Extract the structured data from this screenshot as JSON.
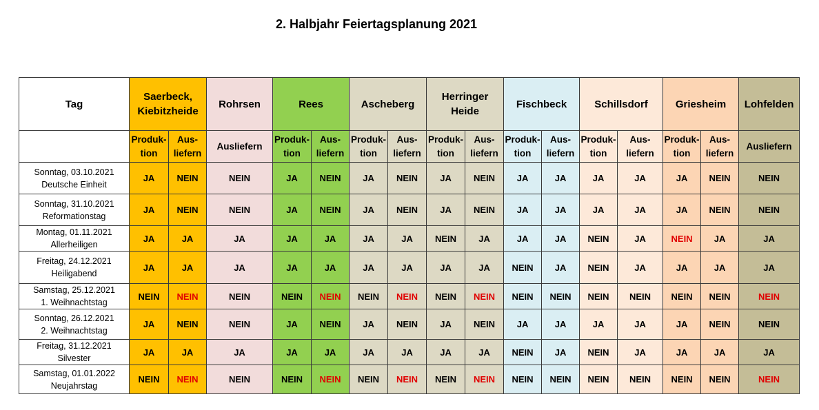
{
  "title": "2. Halbjahr Feiertagsplanung 2021",
  "colors": {
    "saerbeck": "#FFC000",
    "rohrsen": "#F2DCDB",
    "rees": "#92D050",
    "ascheberg": "#DDD9C4",
    "herringer": "#DDD9C4",
    "fischbeck": "#DAEEF3",
    "schillsdorf": "#FDE9D9",
    "griesheim": "#FCD5B4",
    "lohfelden": "#C4BD97",
    "highlight_red": "#E00000"
  },
  "header": {
    "tag_label": "Tag",
    "locations": [
      {
        "name_line1": "Saerbeck,",
        "name_line2": "Kiebitzheide"
      },
      {
        "name_line1": "Rohrsen"
      },
      {
        "name_line1": "Rees"
      },
      {
        "name_line1": "Ascheberg"
      },
      {
        "name_line1": "Herringer",
        "name_line2": "Heide"
      },
      {
        "name_line1": "Fischbeck"
      },
      {
        "name_line1": "Schillsdorf"
      },
      {
        "name_line1": "Griesheim"
      },
      {
        "name_line1": "Lohfelden"
      }
    ],
    "sub": {
      "produktion_a": "Produk-",
      "produktion_b": "tion",
      "ausliefern_a": "Aus-",
      "ausliefern_b": "liefern",
      "ausliefern": "Ausliefern"
    }
  },
  "rows": [
    {
      "date": "Sonntag,  03.10.2021",
      "holiday": "Deutsche Einheit",
      "values": [
        "JA",
        "NEIN",
        "NEIN",
        "JA",
        "NEIN",
        "JA",
        "NEIN",
        "JA",
        "NEIN",
        "JA",
        "JA",
        "JA",
        "JA",
        "JA",
        "NEIN",
        "NEIN"
      ]
    },
    {
      "date": "Sonntag, 31.10.2021",
      "holiday": "Reformationstag",
      "values": [
        "JA",
        "NEIN",
        "NEIN",
        "JA",
        "NEIN",
        "JA",
        "NEIN",
        "JA",
        "NEIN",
        "JA",
        "JA",
        "JA",
        "JA",
        "JA",
        "NEIN",
        "NEIN"
      ]
    },
    {
      "date": "Montag, 01.11.2021",
      "holiday": "Allerheiligen",
      "values": [
        "JA",
        "JA",
        "JA",
        "JA",
        "JA",
        "JA",
        "JA",
        "NEIN",
        "JA",
        "JA",
        "JA",
        "NEIN",
        "JA",
        "NEIN",
        "JA",
        "JA"
      ]
    },
    {
      "date": "Freitag, 24.12.2021",
      "holiday": "Heiligabend",
      "values": [
        "JA",
        "JA",
        "JA",
        "JA",
        "JA",
        "JA",
        "JA",
        "JA",
        "JA",
        "NEIN",
        "JA",
        "NEIN",
        "JA",
        "JA",
        "JA",
        "JA"
      ]
    },
    {
      "date": "Samstag, 25.12.2021",
      "holiday": "1. Weihnachtstag",
      "values": [
        "NEIN",
        "NEIN",
        "NEIN",
        "NEIN",
        "NEIN",
        "NEIN",
        "NEIN",
        "NEIN",
        "NEIN",
        "NEIN",
        "NEIN",
        "NEIN",
        "NEIN",
        "NEIN",
        "NEIN",
        "NEIN"
      ]
    },
    {
      "date": "Sonntag, 26.12.2021",
      "holiday": "2. Weihnachtstag",
      "values": [
        "JA",
        "NEIN",
        "NEIN",
        "JA",
        "NEIN",
        "JA",
        "NEIN",
        "JA",
        "NEIN",
        "JA",
        "JA",
        "JA",
        "JA",
        "JA",
        "NEIN",
        "NEIN"
      ]
    },
    {
      "date": "Freitag, 31.12.2021",
      "holiday": "Silvester",
      "values": [
        "JA",
        "JA",
        "JA",
        "JA",
        "JA",
        "JA",
        "JA",
        "JA",
        "JA",
        "NEIN",
        "JA",
        "NEIN",
        "JA",
        "JA",
        "JA",
        "JA"
      ]
    },
    {
      "date": "Samstag, 01.01.2022",
      "holiday": "Neujahrstag",
      "values": [
        "NEIN",
        "NEIN",
        "NEIN",
        "NEIN",
        "NEIN",
        "NEIN",
        "NEIN",
        "NEIN",
        "NEIN",
        "NEIN",
        "NEIN",
        "NEIN",
        "NEIN",
        "NEIN",
        "NEIN",
        "NEIN"
      ]
    }
  ],
  "red_cells": [
    {
      "row": 2,
      "col": 13
    },
    {
      "row": 4,
      "col": 1
    },
    {
      "row": 4,
      "col": 4
    },
    {
      "row": 4,
      "col": 6
    },
    {
      "row": 4,
      "col": 8
    },
    {
      "row": 4,
      "col": 15
    },
    {
      "row": 7,
      "col": 1
    },
    {
      "row": 7,
      "col": 4
    },
    {
      "row": 7,
      "col": 6
    },
    {
      "row": 7,
      "col": 8
    },
    {
      "row": 7,
      "col": 15
    }
  ]
}
